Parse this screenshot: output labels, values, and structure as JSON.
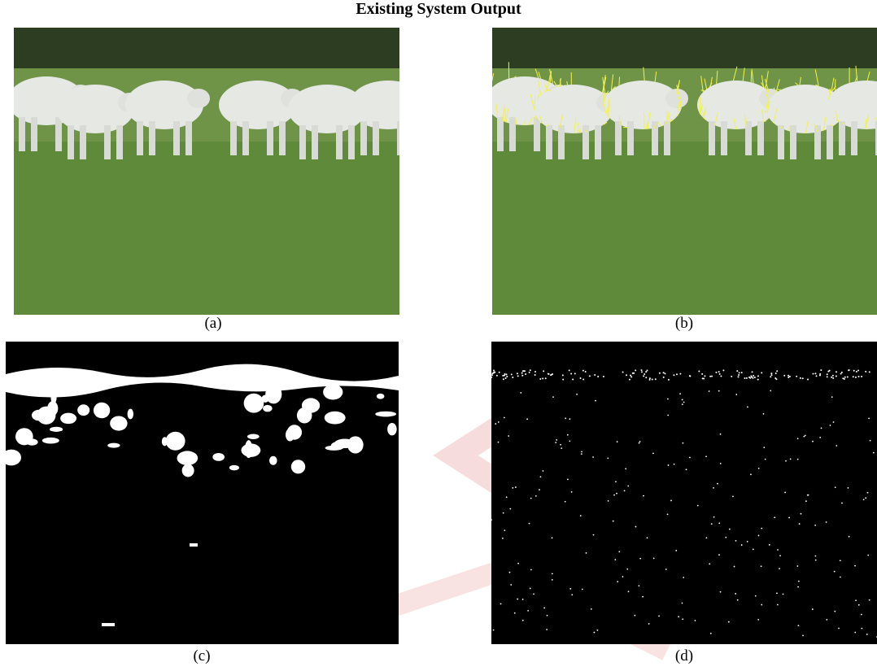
{
  "figure": {
    "title": "Existing System Output",
    "panels": [
      {
        "caption": "(a)"
      },
      {
        "caption": "(b)"
      },
      {
        "caption": "(c)"
      },
      {
        "caption": "(d)"
      }
    ]
  }
}
